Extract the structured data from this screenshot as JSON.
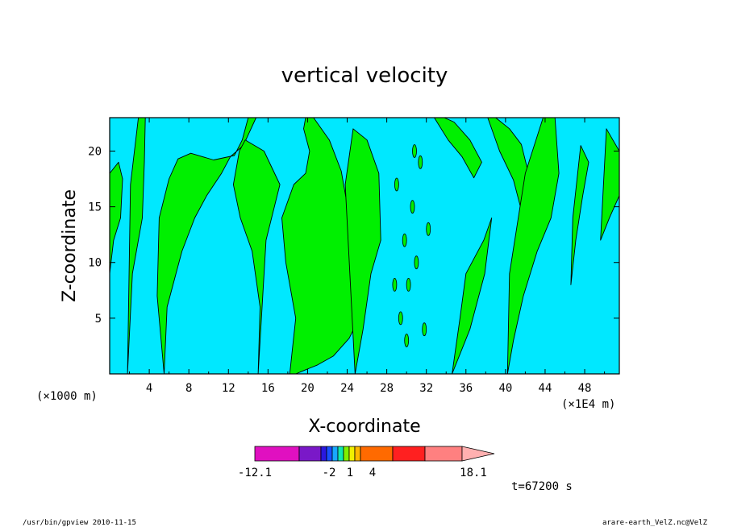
{
  "chart_data": {
    "type": "contour",
    "title": "vertical velocity",
    "xlabel": "X-coordinate",
    "ylabel": "Z-coordinate",
    "x_unit_left": "(×1000 m)",
    "x_unit_right": "(×1E4 m)",
    "xlim": [
      0,
      51.5
    ],
    "ylim": [
      0,
      23
    ],
    "x_ticks": [
      "4",
      "8",
      "12",
      "16",
      "20",
      "24",
      "28",
      "32",
      "36",
      "40",
      "44",
      "48"
    ],
    "x_tick_values": [
      4,
      8,
      12,
      16,
      20,
      24,
      28,
      32,
      36,
      40,
      44,
      48
    ],
    "y_ticks": [
      "5",
      "10",
      "15",
      "20"
    ],
    "y_tick_values": [
      5,
      10,
      15,
      20
    ],
    "fields": {
      "background_color": "#00e8ff",
      "positive_color": "#00f000",
      "contour_color": "#000000",
      "green_bands": [
        {
          "x": [
            1.8,
            2.3,
            3.3,
            3.5,
            3.6,
            2.9,
            2.1,
            1.8
          ],
          "y": [
            0,
            9,
            14,
            19,
            23,
            23,
            17,
            0
          ]
        },
        {
          "x": [
            5.5,
            5.8,
            7.3,
            8.6,
            9.8,
            11.3,
            12.2,
            13.5,
            14.8,
            14.0,
            13.4,
            12.6,
            10.5,
            8.2,
            6.9,
            6.0,
            5.0,
            4.8,
            5.5
          ],
          "y": [
            0,
            6,
            11,
            14,
            16,
            18,
            19.5,
            20.5,
            23,
            23,
            21,
            19.6,
            19.2,
            19.8,
            19.3,
            17.5,
            14,
            7,
            0
          ]
        },
        {
          "x": [
            15.0,
            15.2,
            14.4,
            13.2,
            12.5,
            13.1,
            13.7,
            15.6,
            17.2,
            15.8,
            15.0
          ],
          "y": [
            0,
            6,
            11,
            14,
            17,
            20,
            21,
            20,
            17,
            12,
            0
          ]
        },
        {
          "x": [
            18.2,
            18.8,
            17.8,
            17.4,
            18.6,
            19.8,
            20.2,
            19.6,
            19.8,
            20.6,
            22.2,
            23.4,
            24.0,
            24.7,
            25.6,
            25.2,
            24.2,
            22.6,
            21.0,
            19.6,
            18.8,
            18.2
          ],
          "y": [
            0,
            5,
            10,
            14,
            17,
            18,
            20,
            22,
            23,
            23,
            21,
            18.2,
            15.2,
            12,
            8.2,
            5,
            3.2,
            1.6,
            0.8,
            0.3,
            0,
            0
          ]
        },
        {
          "x": [
            24.8,
            25.6,
            26.4,
            27.4,
            27.2,
            26.0,
            24.6,
            23.8,
            24.8
          ],
          "y": [
            0,
            4,
            9,
            12,
            18,
            21,
            22,
            17,
            0
          ]
        },
        {
          "x": [
            34.6,
            35.4,
            36.0,
            37.8,
            38.6,
            37.9,
            36.4,
            34.6
          ],
          "y": [
            0,
            5,
            9,
            12,
            14,
            9,
            4,
            0
          ]
        },
        {
          "x": [
            32.8,
            34.2,
            35.6,
            36.8,
            37.6,
            36.4,
            34.8,
            33.8,
            32.8
          ],
          "y": [
            23,
            21,
            19.5,
            17.6,
            19,
            21,
            22.6,
            23,
            23
          ]
        },
        {
          "x": [
            38.2,
            39.4,
            40.8,
            41.8,
            42.6,
            41.6,
            40.4,
            39.0,
            38.2
          ],
          "y": [
            23,
            20,
            17.4,
            14,
            17,
            20.6,
            22,
            23,
            23
          ]
        },
        {
          "x": [
            40.2,
            40.8,
            41.8,
            43.2,
            44.6,
            45.4,
            45.0,
            43.8,
            42.0,
            40.4,
            40.2
          ],
          "y": [
            0,
            3,
            7,
            11,
            14,
            18,
            23,
            23,
            18,
            9,
            0
          ]
        },
        {
          "x": [
            46.6,
            47.1,
            47.8,
            48.4,
            47.6,
            46.8,
            46.6
          ],
          "y": [
            8,
            12,
            16,
            19,
            20.5,
            14,
            8
          ]
        },
        {
          "x": [
            49.6,
            50.5,
            51.5,
            51.5,
            50.2,
            49.6
          ],
          "y": [
            12,
            14,
            16,
            20,
            22,
            12
          ]
        },
        {
          "x": [
            0,
            0.4,
            1.1,
            1.3,
            0.9,
            0,
            0
          ],
          "y": [
            9,
            12,
            14,
            17.5,
            19,
            18,
            9
          ]
        }
      ]
    },
    "colorbar": {
      "labels": [
        "-12.1",
        "-2",
        "1",
        "4",
        "18.1"
      ],
      "colors": [
        "#e010c0",
        "#7a18c8",
        "#2a18e0",
        "#1850ff",
        "#18a8ff",
        "#10e8b0",
        "#80f000",
        "#f0f000",
        "#ffb800",
        "#ff6a00",
        "#ff2020",
        "#ff8080",
        "#ffb0b0"
      ]
    },
    "time_label": "t=67200 s"
  },
  "footer": {
    "left": "/usr/bin/gpview   2010-11-15",
    "right": "arare-earth_VelZ.nc@VelZ"
  }
}
